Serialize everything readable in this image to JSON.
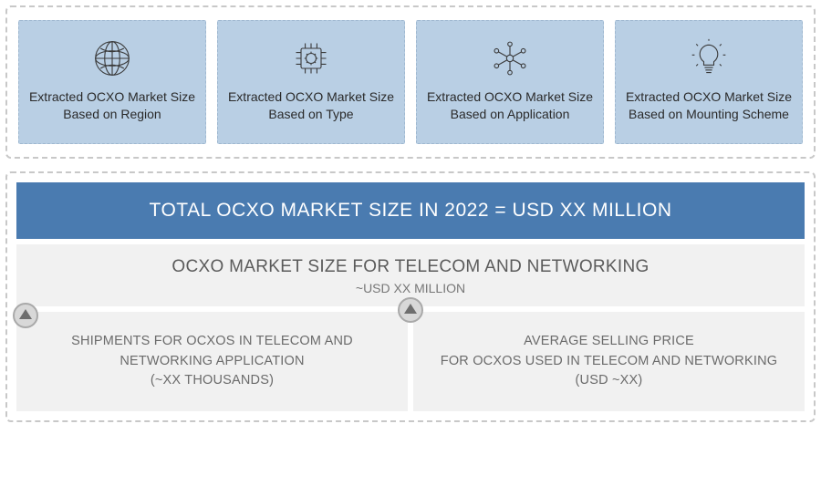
{
  "colors": {
    "card_bg": "#b9cfe4",
    "banner_bg": "#4a7bb0",
    "banner_text": "#ffffff",
    "panel_bg": "#f1f1f1",
    "text_main": "#2a2a2a",
    "text_muted": "#5b5b5b",
    "text_light": "#6b6b6b",
    "dash_border": "#c8c8c8",
    "icon_stroke": "#3a3a3a",
    "arrow_border": "#a9a9a9",
    "arrow_fill": "#d8d8d8",
    "arrow_triangle": "#6e6e6e"
  },
  "cards": [
    {
      "icon": "globe-icon",
      "label": "Extracted OCXO Market Size Based on Region"
    },
    {
      "icon": "chip-icon",
      "label": "Extracted OCXO Market Size Based on Type"
    },
    {
      "icon": "network-icon",
      "label": "Extracted OCXO Market Size Based on Application"
    },
    {
      "icon": "bulb-icon",
      "label": "Extracted OCXO Market Size Based on Mounting Scheme"
    }
  ],
  "banner": "TOTAL OCXO MARKET SIZE IN 2022 = USD XX MILLION",
  "sub": {
    "title": "OCXO MARKET SIZE FOR TELECOM AND NETWORKING",
    "subtitle": "~USD XX MILLION"
  },
  "left_col": "SHIPMENTS FOR OCXOS IN TELECOM AND NETWORKING APPLICATION\n(~XX THOUSANDS)",
  "right_col": "AVERAGE SELLING PRICE\nFOR OCXOS USED IN TELECOM AND NETWORKING (USD ~XX)"
}
